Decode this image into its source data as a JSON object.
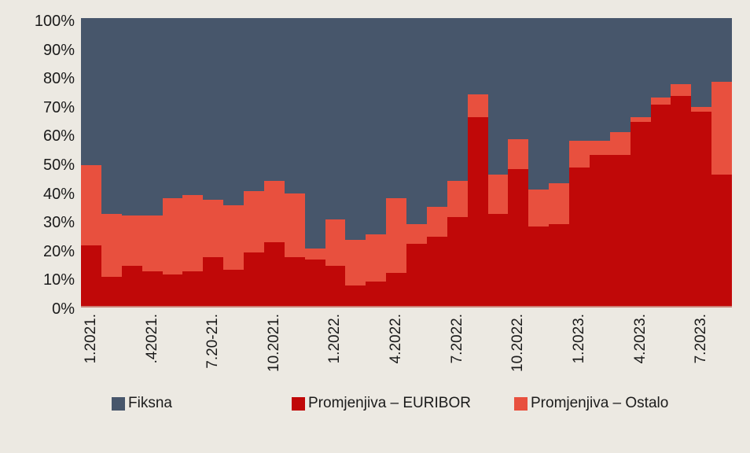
{
  "chart": {
    "y_axis": {
      "tick_labels": [
        "100%",
        "90%",
        "80%",
        "70%",
        "60%",
        "50%",
        "40%",
        "30%",
        "20%",
        "10%",
        "0%"
      ]
    },
    "x_axis": {
      "tick_labels": [
        "1.2021.",
        ".42021.",
        "7.20-21.",
        "10.2021.",
        "1.2022.",
        "4.2022.",
        "7.2022.",
        "10.2022.",
        "1.2023.",
        "4.2023.",
        "7.2023."
      ],
      "tick_bar_indices": [
        0,
        3,
        6,
        9,
        12,
        15,
        18,
        21,
        24,
        27,
        30
      ]
    },
    "legend": [
      {
        "label": "Fiksna",
        "color": "#47566b"
      },
      {
        "label": "Promjenjiva – EURIBOR",
        "color": "#c00808"
      },
      {
        "label": "Promjenjiva – Ostalo",
        "color": "#e8503e"
      }
    ]
  },
  "chart_data": {
    "type": "bar",
    "stacked": true,
    "normalized_100_percent": true,
    "unit": "%",
    "ylim": [
      0,
      100
    ],
    "grid": false,
    "legend_position": "bottom",
    "categories": [
      "1.2021.",
      "2.2021.",
      "3.2021.",
      "4.2021.",
      "5.2021.",
      "6.2021.",
      "7.2021.",
      "8.2021.",
      "9.2021.",
      "10.2021.",
      "11.2021.",
      "12.2021.",
      "1.2022.",
      "2.2022.",
      "3.2022.",
      "4.2022.",
      "5.2022.",
      "6.2022.",
      "7.2022.",
      "8.2022.",
      "9.2022.",
      "10.2022.",
      "11.2022.",
      "12.2022.",
      "1.2023.",
      "2.2023.",
      "3.2023.",
      "4.2023.",
      "5.2023.",
      "6.2023.",
      "7.2023.",
      "8.2023."
    ],
    "visible_x_tick_labels": [
      "1.2021.",
      ".42021.",
      "7.20-21.",
      "10.2021.",
      "1.2022.",
      "4.2022.",
      "7.2022.",
      "10.2022.",
      "1.2023.",
      "4.2023.",
      "7.2023."
    ],
    "series": [
      {
        "name": "Fiksna",
        "color": "#47566b",
        "values": [
          51,
          68,
          68.5,
          68.5,
          62.5,
          61.5,
          63,
          65,
          60,
          56.5,
          61,
          80,
          70,
          77,
          75,
          62.5,
          71.5,
          65.5,
          56.5,
          26.5,
          54.5,
          42,
          59.5,
          57.5,
          42.5,
          42.5,
          39.5,
          34.5,
          27.5,
          23,
          31,
          22
        ]
      },
      {
        "name": "Promjenjiva – EURIBOR",
        "color": "#c00808",
        "values": [
          21,
          10,
          14,
          12,
          11,
          12,
          17,
          12.5,
          18.5,
          22,
          17,
          16,
          14,
          7,
          8.5,
          11.5,
          21.5,
          24,
          31,
          65.5,
          32,
          47.5,
          27.5,
          28.5,
          48,
          52.5,
          52.5,
          64,
          70,
          73,
          67.5,
          45.5
        ]
      },
      {
        "name": "Promjenjiva – Ostalo",
        "color": "#e8503e",
        "values": [
          28,
          22,
          17.5,
          19.5,
          26.5,
          26.5,
          20,
          22.5,
          21.5,
          21.5,
          22,
          4,
          16,
          16,
          16.5,
          26,
          7,
          10.5,
          12.5,
          8,
          13.5,
          10.5,
          13,
          14,
          9.5,
          5,
          8,
          1.5,
          2.5,
          4,
          1.5,
          32.5
        ]
      }
    ]
  },
  "colors": {
    "background": "#ece9e2",
    "plot_fixed_fill": "#47566b",
    "euribor_fill": "#c00808",
    "ostalo_fill": "#e8503e",
    "text": "#1b1b1b"
  }
}
